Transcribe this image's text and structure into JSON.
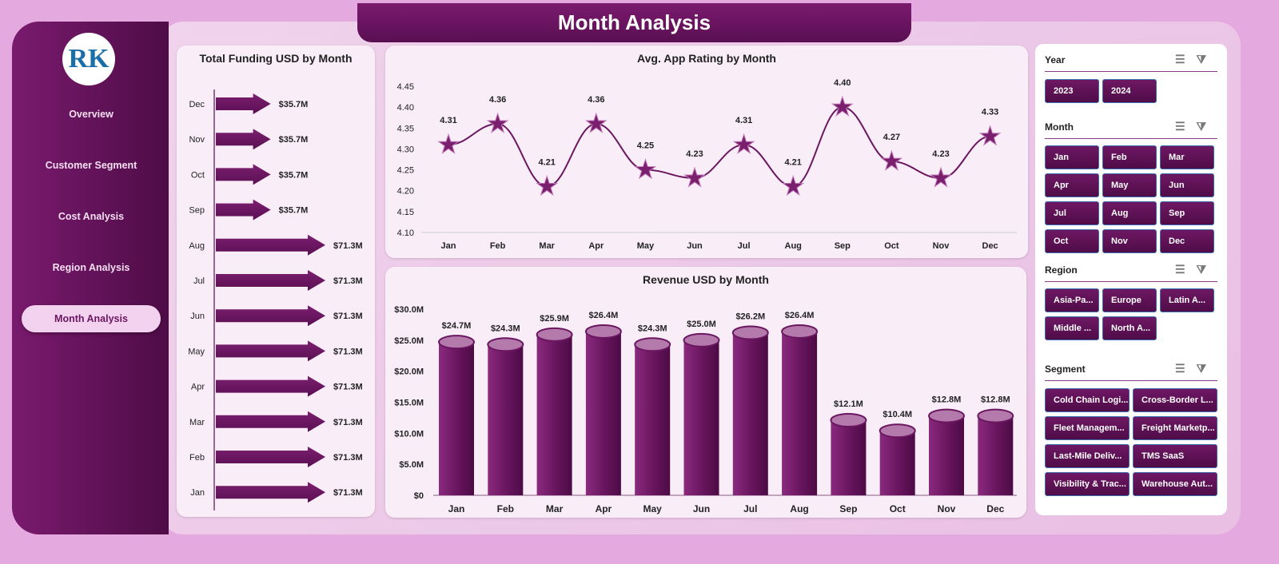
{
  "title": "Month Analysis",
  "sidebar": {
    "logo_text": "RK",
    "items": [
      {
        "label": "Overview"
      },
      {
        "label": "Customer Segment"
      },
      {
        "label": "Cost Analysis"
      },
      {
        "label": "Region Analysis"
      },
      {
        "label": "Month Analysis",
        "active": true
      }
    ]
  },
  "colors": {
    "accent": "#6b1660",
    "background": "#e4a9de"
  },
  "slicers": {
    "year": {
      "label": "Year",
      "options": [
        "2023",
        "2024"
      ]
    },
    "month": {
      "label": "Month",
      "options": [
        "Jan",
        "Feb",
        "Mar",
        "Apr",
        "May",
        "Jun",
        "Jul",
        "Aug",
        "Sep",
        "Oct",
        "Nov",
        "Dec"
      ]
    },
    "region": {
      "label": "Region",
      "options": [
        "Asia-Pa...",
        "Europe",
        "Latin A...",
        "Middle ...",
        "North A..."
      ]
    },
    "segment": {
      "label": "Segment",
      "options": [
        "Cold Chain Logi...",
        "Cross-Border L...",
        "Fleet Managem...",
        "Freight Marketp...",
        "Last-Mile Deliv...",
        "TMS SaaS",
        "Visibility & Trac...",
        "Warehouse Aut..."
      ]
    },
    "icons": [
      "multi-select-icon",
      "clear-filter-icon"
    ]
  },
  "chart_data": [
    {
      "type": "bar",
      "orientation": "horizontal",
      "title": "Total Funding USD by Month",
      "categories": [
        "Dec",
        "Nov",
        "Oct",
        "Sep",
        "Aug",
        "Jul",
        "Jun",
        "May",
        "Apr",
        "Mar",
        "Feb",
        "Jan"
      ],
      "values": [
        35.7,
        35.7,
        35.7,
        35.7,
        71.3,
        71.3,
        71.3,
        71.3,
        71.3,
        71.3,
        71.3,
        71.3
      ],
      "labels": [
        "$35.7M",
        "$35.7M",
        "$35.7M",
        "$35.7M",
        "$71.3M",
        "$71.3M",
        "$71.3M",
        "$71.3M",
        "$71.3M",
        "$71.3M",
        "$71.3M",
        "$71.3M"
      ]
    },
    {
      "type": "line",
      "title": "Avg. App Rating by Month",
      "categories": [
        "Jan",
        "Feb",
        "Mar",
        "Apr",
        "May",
        "Jun",
        "Jul",
        "Aug",
        "Sep",
        "Oct",
        "Nov",
        "Dec"
      ],
      "values": [
        4.31,
        4.36,
        4.21,
        4.36,
        4.25,
        4.23,
        4.31,
        4.21,
        4.4,
        4.27,
        4.23,
        4.33
      ],
      "labels": [
        "4.31",
        "4.36",
        "4.21",
        "4.36",
        "4.25",
        "4.23",
        "4.31",
        "4.21",
        "4.40",
        "4.27",
        "4.23",
        "4.33"
      ],
      "ylim": [
        4.1,
        4.45
      ],
      "yticks": [
        "4.10",
        "4.15",
        "4.20",
        "4.25",
        "4.30",
        "4.35",
        "4.40",
        "4.45"
      ],
      "marker": "star"
    },
    {
      "type": "bar",
      "title": "Revenue USD by Month",
      "categories": [
        "Jan",
        "Feb",
        "Mar",
        "Apr",
        "May",
        "Jun",
        "Jul",
        "Aug",
        "Sep",
        "Oct",
        "Nov",
        "Dec"
      ],
      "values": [
        24.7,
        24.3,
        25.9,
        26.4,
        24.3,
        25.0,
        26.2,
        26.4,
        12.1,
        10.4,
        12.8,
        12.8
      ],
      "labels": [
        "$24.7M",
        "$24.3M",
        "$25.9M",
        "$26.4M",
        "$24.3M",
        "$25.0M",
        "$26.2M",
        "$26.4M",
        "$12.1M",
        "$10.4M",
        "$12.8M",
        "$12.8M"
      ],
      "ylim": [
        0,
        30
      ],
      "yticks": [
        "$0",
        "$5.0M",
        "$10.0M",
        "$15.0M",
        "$20.0M",
        "$25.0M",
        "$30.0M"
      ]
    }
  ]
}
